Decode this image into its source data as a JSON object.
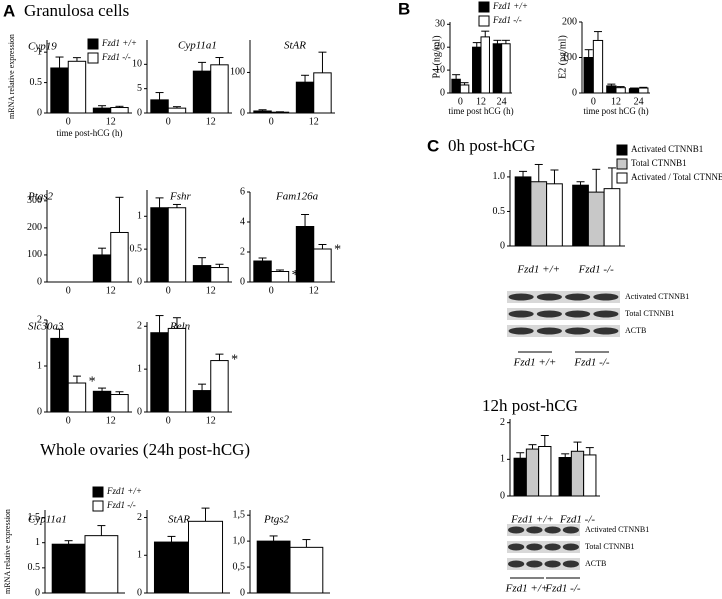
{
  "headings": [
    "A",
    "Granulosa cells",
    "Whole ovaries (24h post-hCG)",
    "B",
    "C",
    "0h post-hCG",
    "12h post-hCG"
  ],
  "chart_data": [
    {
      "type": "bar",
      "title": "Cyp19",
      "ylabel": "mRNA relative expression",
      "xlabel": "time post-hCG (h)",
      "categories": [
        "0",
        "12"
      ],
      "legend": "upper right",
      "series": [
        {
          "name": "Fzd1 +/+",
          "color": "#000000",
          "values": [
            0.74,
            0.08
          ],
          "errors": [
            0.18,
            0.04
          ]
        },
        {
          "name": "Fzd1 -/-",
          "color": "#ffffff",
          "values": [
            0.85,
            0.09
          ],
          "errors": [
            0.06,
            0.02
          ]
        }
      ],
      "ylim": [
        0,
        1.2
      ],
      "yticks": [
        0,
        0.5,
        1
      ]
    },
    {
      "type": "bar",
      "title": "Cyp11a1",
      "categories": [
        "0",
        "12"
      ],
      "series": [
        {
          "color": "#000000",
          "values": [
            2.7,
            8.6
          ],
          "errors": [
            1.5,
            1.8
          ]
        },
        {
          "color": "#ffffff",
          "values": [
            1.0,
            9.9
          ],
          "errors": [
            0.3,
            1.5
          ]
        }
      ],
      "ylim": [
        0,
        15
      ],
      "yticks": [
        0,
        5,
        10
      ]
    },
    {
      "type": "bar",
      "title": "StAR",
      "categories": [
        "0",
        "12"
      ],
      "series": [
        {
          "color": "#000000",
          "values": [
            5,
            76
          ],
          "errors": [
            3,
            17
          ]
        },
        {
          "color": "#ffffff",
          "values": [
            2,
            99
          ],
          "errors": [
            1,
            51
          ]
        }
      ],
      "ylim": [
        0,
        180
      ],
      "yticks": [
        0,
        100
      ]
    },
    {
      "type": "bar",
      "title": "Ptgs2",
      "categories": [
        "0",
        "12"
      ],
      "series": [
        {
          "color": "#000000",
          "values": [
            0,
            100
          ],
          "errors": [
            0,
            25
          ]
        },
        {
          "color": "#ffffff",
          "values": [
            0,
            183
          ],
          "errors": [
            0,
            130
          ]
        }
      ],
      "ylim": [
        0,
        340
      ],
      "yticks": [
        0,
        100,
        200,
        300
      ]
    },
    {
      "type": "bar",
      "title": "Fshr",
      "categories": [
        "0",
        "12"
      ],
      "series": [
        {
          "color": "#000000",
          "values": [
            1.13,
            0.25
          ],
          "errors": [
            0.15,
            0.12
          ]
        },
        {
          "color": "#ffffff",
          "values": [
            1.13,
            0.22
          ],
          "errors": [
            0.05,
            0.05
          ]
        }
      ],
      "ylim": [
        0,
        1.4
      ],
      "yticks": [
        0,
        0.5,
        1
      ]
    },
    {
      "type": "bar",
      "title": "Fam126a",
      "categories": [
        "0",
        "12"
      ],
      "series": [
        {
          "color": "#000000",
          "values": [
            1.4,
            3.7
          ],
          "errors": [
            0.2,
            0.8
          ]
        },
        {
          "color": "#ffffff",
          "values": [
            0.7,
            2.2
          ],
          "errors": [
            0.1,
            0.3
          ],
          "significance": [
            "*",
            "*"
          ]
        }
      ],
      "ylim": [
        0,
        6
      ],
      "yticks": [
        0,
        2,
        4,
        6
      ]
    },
    {
      "type": "bar",
      "title": "Slc30a3",
      "categories": [
        "0",
        "12"
      ],
      "series": [
        {
          "color": "#000000",
          "values": [
            1.6,
            0.45
          ],
          "errors": [
            0.2,
            0.07
          ]
        },
        {
          "color": "#ffffff",
          "values": [
            0.63,
            0.38
          ],
          "errors": [
            0.15,
            0.06
          ],
          "significance": [
            "*",
            null
          ]
        }
      ],
      "ylim": [
        0,
        2
      ],
      "yticks": [
        0,
        1,
        2
      ]
    },
    {
      "type": "bar",
      "title": "Reln",
      "categories": [
        "0",
        "12"
      ],
      "series": [
        {
          "color": "#000000",
          "values": [
            1.85,
            0.5
          ],
          "errors": [
            0.4,
            0.15
          ]
        },
        {
          "color": "#ffffff",
          "values": [
            1.95,
            1.2
          ],
          "errors": [
            0.25,
            0.15
          ],
          "significance": [
            null,
            "*"
          ]
        }
      ],
      "ylim": [
        0,
        2.1
      ],
      "yticks": [
        0,
        1,
        2
      ]
    },
    {
      "type": "bar",
      "title": "Cyp11a1",
      "ylabel": "mRNA relative expression",
      "legend": "upper right",
      "series": [
        {
          "name": "Fzd1 +/+",
          "color": "#000000",
          "values": [
            0.97
          ],
          "errors": [
            0.07
          ]
        },
        {
          "name": "Fzd1 -/-",
          "color": "#ffffff",
          "values": [
            1.14
          ],
          "errors": [
            0.2
          ]
        }
      ],
      "ylim": [
        0,
        1.65
      ],
      "yticks": [
        0,
        0.5,
        1,
        1.5
      ]
    },
    {
      "type": "bar",
      "title": "StAR",
      "series": [
        {
          "color": "#000000",
          "values": [
            1.35
          ],
          "errors": [
            0.15
          ]
        },
        {
          "color": "#ffffff",
          "values": [
            1.9
          ],
          "errors": [
            0.35
          ]
        }
      ],
      "ylim": [
        0,
        2.2
      ],
      "yticks": [
        0,
        1,
        2
      ]
    },
    {
      "type": "bar",
      "title": "Ptgs2",
      "series": [
        {
          "color": "#000000",
          "values": [
            1.0
          ],
          "errors": [
            0.1
          ]
        },
        {
          "color": "#ffffff",
          "values": [
            0.88
          ],
          "errors": [
            0.15
          ]
        }
      ],
      "ylim": [
        0,
        1.6
      ],
      "yticks": [
        0,
        {
          "value": 0.5,
          "label": "0,5"
        },
        {
          "value": 1,
          "label": "1,0"
        },
        {
          "value": 1.5,
          "label": "1,5"
        }
      ]
    },
    {
      "type": "bar",
      "title": "P4 (ng/ml)",
      "xlabel": "time post hCG (h)",
      "categories": [
        "0",
        "12",
        "24"
      ],
      "legend": "upper right",
      "series": [
        {
          "name": "Fzd1 +/+",
          "color": "#000000",
          "values": [
            6,
            20,
            21.5
          ],
          "errors": [
            2,
            2,
            1.5
          ]
        },
        {
          "name": "Fzd1 -/-",
          "color": "#ffffff",
          "values": [
            3.5,
            24.5,
            21.5
          ],
          "errors": [
            1,
            2.5,
            1.5
          ]
        }
      ],
      "ylim": [
        0,
        31
      ],
      "yticks": [
        0,
        10,
        20,
        30
      ]
    },
    {
      "type": "bar",
      "title": "E2 (pg/ml)",
      "xlabel": "time post hCG (h)",
      "categories": [
        "0",
        "12",
        "24"
      ],
      "series": [
        {
          "color": "#000000",
          "values": [
            100,
            20,
            12
          ],
          "errors": [
            22,
            5,
            2
          ]
        },
        {
          "color": "#ffffff",
          "values": [
            148,
            15,
            14
          ],
          "errors": [
            25,
            3,
            2
          ]
        }
      ],
      "ylim": [
        0,
        200
      ],
      "yticks": [
        0,
        100,
        200
      ]
    },
    {
      "type": "bar",
      "categories": [
        "Fzd1 +/+",
        "Fzd1 -/-"
      ],
      "legend": "upper right",
      "series": [
        {
          "name": "Activated CTNNB1",
          "color": "#000000",
          "values": [
            1.0,
            0.88
          ],
          "errors": [
            0.08,
            0.05
          ]
        },
        {
          "name": "Total  CTNNB1",
          "color": "#c8c8c8",
          "values": [
            0.93,
            0.78
          ],
          "errors": [
            0.25,
            0.33
          ]
        },
        {
          "name": "Activated / Total CTNNB1",
          "color": "#ffffff",
          "values": [
            0.9,
            0.83
          ],
          "errors": [
            0.2,
            0.3
          ]
        }
      ],
      "ylim": [
        0,
        1.1
      ],
      "yticks": [
        0,
        0.5,
        {
          "value": 1,
          "label": "1.0"
        }
      ]
    },
    {
      "type": "bar",
      "categories": [
        "Fzd1 +/+",
        "Fzd1 -/-"
      ],
      "series": [
        {
          "color": "#000000",
          "values": [
            1.03,
            1.05
          ],
          "errors": [
            0.15,
            0.1
          ]
        },
        {
          "color": "#c8c8c8",
          "values": [
            1.28,
            1.22
          ],
          "errors": [
            0.12,
            0.25
          ]
        },
        {
          "color": "#ffffff",
          "values": [
            1.35,
            1.12
          ],
          "errors": [
            0.3,
            0.2
          ]
        }
      ],
      "ylim": [
        0,
        2.1
      ],
      "yticks": [
        0,
        1,
        2
      ]
    }
  ],
  "blots": [
    {
      "rows": [
        "Activated CTNNB1",
        "Total  CTNNB1",
        "ACTB"
      ],
      "groups": [
        "Fzd1 +/+",
        "Fzd1 -/-"
      ]
    },
    {
      "rows": [
        "Activated CTNNB1",
        "Total  CTNNB1",
        "ACTB"
      ],
      "groups": [
        "Fzd1 +/+",
        "Fzd1 -/-"
      ]
    }
  ]
}
